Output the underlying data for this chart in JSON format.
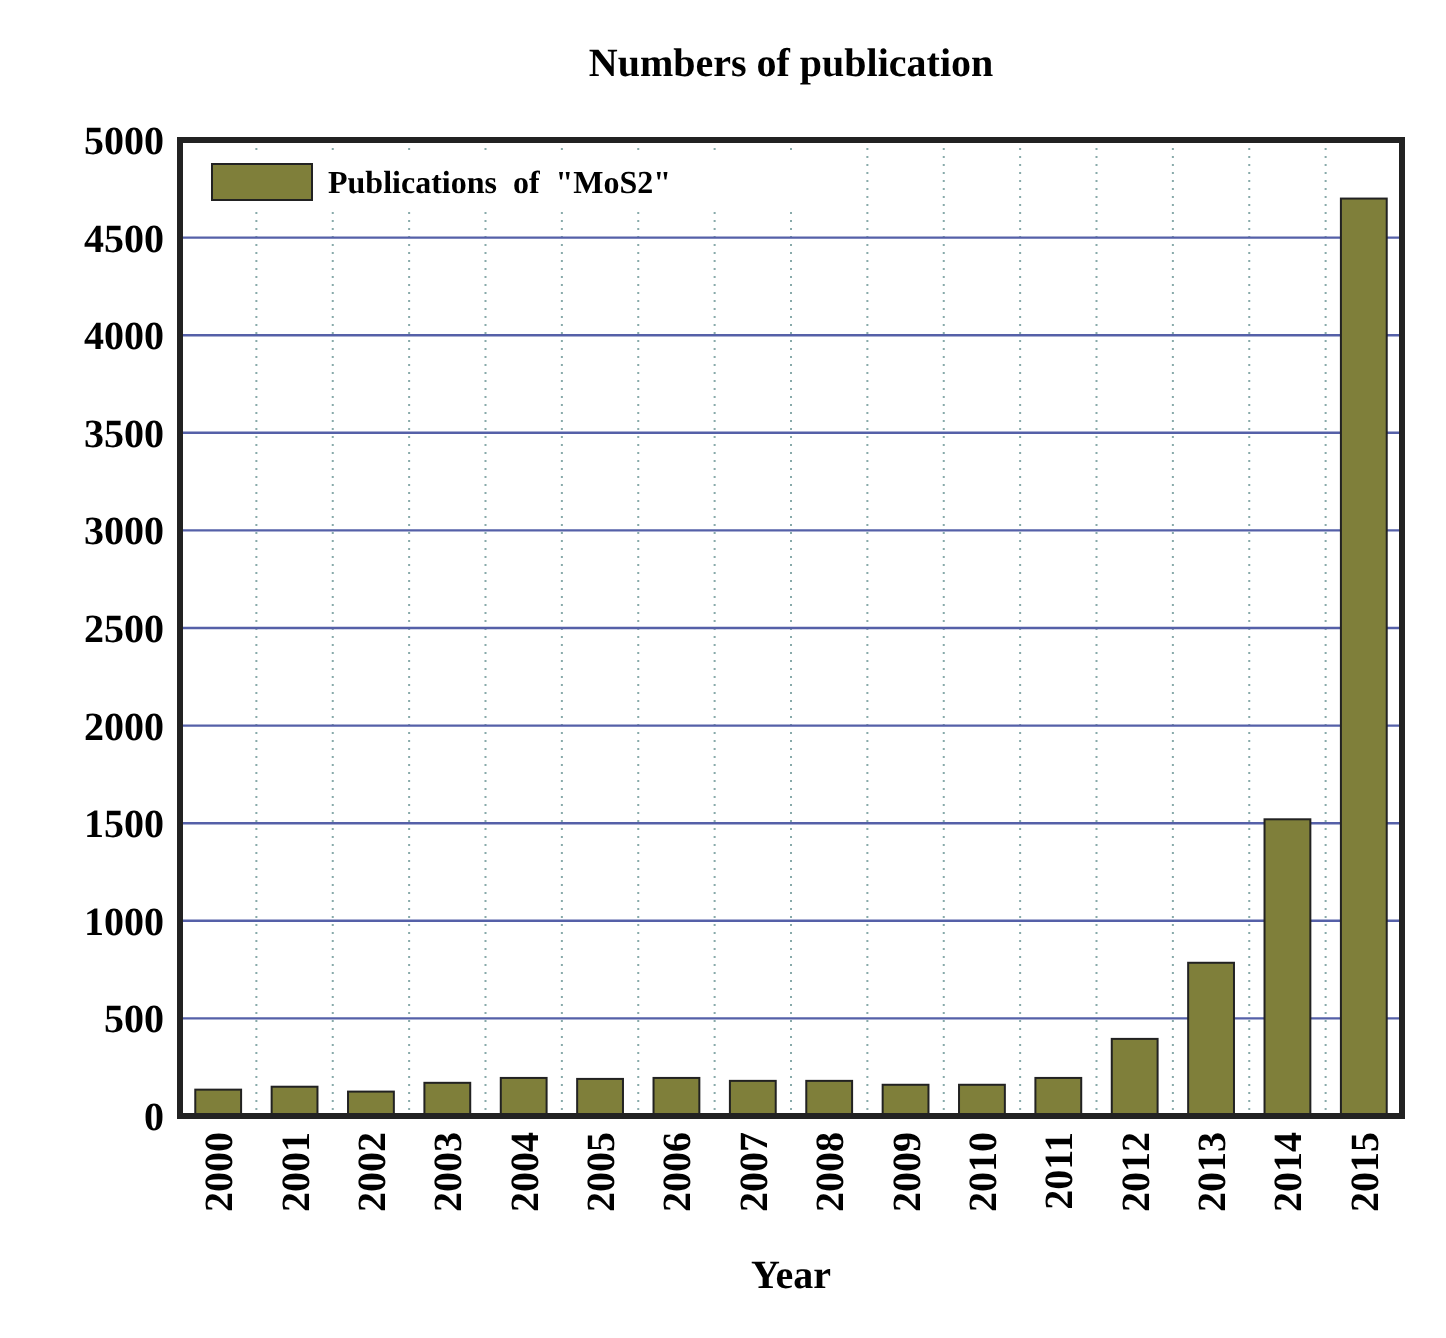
{
  "chart_data": {
    "type": "bar",
    "title": "Numbers of publication",
    "xlabel": "Year",
    "categories": [
      "2000",
      "2001",
      "2002",
      "2003",
      "2004",
      "2005",
      "2006",
      "2007",
      "2008",
      "2009",
      "2010",
      "2011",
      "2012",
      "2013",
      "2014",
      "2015"
    ],
    "series": [
      {
        "name": "Publications  of  \"MoS2\"",
        "color": "#7f7f3a",
        "values": [
          135,
          150,
          125,
          170,
          195,
          190,
          195,
          180,
          180,
          160,
          160,
          195,
          395,
          785,
          1520,
          4700
        ]
      }
    ],
    "ylim": [
      0,
      5000
    ],
    "yticks": [
      0,
      500,
      1000,
      1500,
      2000,
      2500,
      3000,
      3500,
      4000,
      4500,
      5000
    ],
    "grid": true,
    "legend": "top left"
  }
}
